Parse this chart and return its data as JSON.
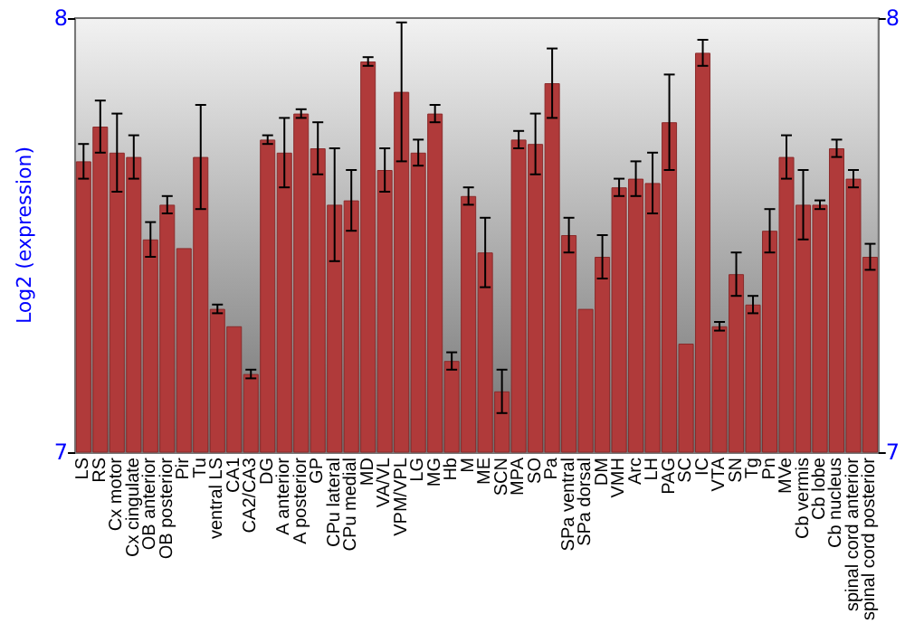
{
  "chart_data": {
    "type": "bar",
    "ylabel": "Log2 (expression)",
    "categories": [
      "LS",
      "RS",
      "Cx motor",
      "Cx cingulate",
      "OB anterior",
      "OB posterior",
      "Pir",
      "Tu",
      "ventral LS",
      "CA1",
      "CA2/CA3",
      "DG",
      "A anterior",
      "A posterior",
      "GP",
      "CPu lateral",
      "CPu medial",
      "MD",
      "VA/VL",
      "VPM/VPL",
      "LG",
      "MG",
      "Hb",
      "M",
      "ME",
      "SCN",
      "MPA",
      "SO",
      "Pa",
      "SPa ventral",
      "SPa dorsal",
      "DM",
      "VMH",
      "Arc",
      "LH",
      "PAG",
      "SC",
      "IC",
      "VTA",
      "SN",
      "Tg",
      "Pn",
      "MVe",
      "Cb vermis",
      "Cb lobe",
      "Cb nucleus",
      "spinal cord anterior",
      "spinal cord posterior"
    ],
    "values": [
      7.67,
      7.75,
      7.69,
      7.68,
      7.49,
      7.57,
      7.47,
      7.68,
      7.33,
      7.29,
      7.18,
      7.72,
      7.69,
      7.78,
      7.7,
      7.57,
      7.58,
      7.9,
      7.65,
      7.83,
      7.69,
      7.78,
      7.21,
      7.59,
      7.46,
      7.14,
      7.72,
      7.71,
      7.85,
      7.5,
      7.33,
      7.45,
      7.61,
      7.63,
      7.62,
      7.76,
      7.25,
      7.92,
      7.29,
      7.41,
      7.34,
      7.51,
      7.68,
      7.57,
      7.57,
      7.7,
      7.63,
      7.45
    ],
    "errors": [
      0.04,
      0.06,
      0.09,
      0.05,
      0.04,
      0.02,
      null,
      0.12,
      0.01,
      null,
      0.01,
      0.01,
      0.08,
      0.01,
      0.06,
      0.13,
      0.07,
      0.01,
      0.05,
      0.16,
      0.03,
      0.02,
      0.02,
      0.02,
      0.08,
      0.05,
      0.02,
      0.07,
      0.08,
      0.04,
      null,
      0.05,
      0.02,
      0.04,
      0.07,
      0.11,
      null,
      0.03,
      0.01,
      0.05,
      0.02,
      0.05,
      0.05,
      0.08,
      0.01,
      0.02,
      0.02,
      0.03
    ],
    "color": "#b03a3a",
    "ylim": [
      7,
      8
    ],
    "yticks": [
      7,
      8
    ],
    "y2lim": [
      7,
      8
    ],
    "y2ticks": [
      7,
      8
    ],
    "grid": false
  }
}
